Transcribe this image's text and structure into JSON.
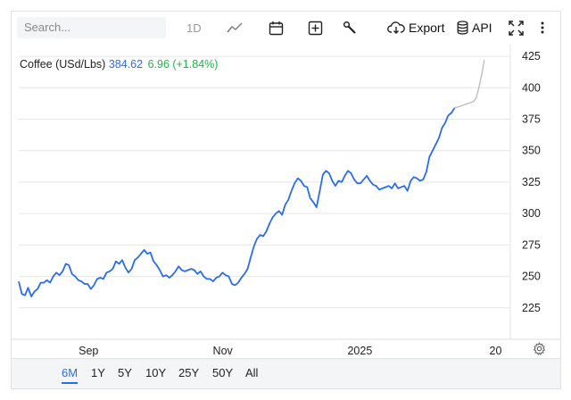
{
  "toolbar": {
    "search_placeholder": "Search...",
    "interval": "1D",
    "chart_type_icon": "line-chart-icon",
    "calendar_icon": "calendar-icon",
    "add_icon": "plus-square-icon",
    "tools_icon": "wrench-icon",
    "export_label": "Export",
    "api_label": "API",
    "expand_icon": "expand-icon",
    "more_icon": "more-vertical-icon"
  },
  "info": {
    "name": "Coffee (USd/Lbs)",
    "price": "384.62",
    "change": "6.96 (+1.84%)"
  },
  "ranges": {
    "items": [
      "6M",
      "1Y",
      "5Y",
      "10Y",
      "25Y",
      "50Y",
      "All"
    ],
    "active": "6M"
  },
  "settings_icon": "gear-icon",
  "chart_data": {
    "type": "line",
    "title": "",
    "xlabel": "",
    "ylabel": "",
    "ylim": [
      200,
      435
    ],
    "yticks": [
      225,
      250,
      275,
      300,
      325,
      350,
      375,
      400,
      425
    ],
    "xtick_labels": [
      "Sep",
      "Nov",
      "2025",
      "20"
    ],
    "xtick_pos": [
      0.142,
      0.415,
      0.694,
      0.97
    ],
    "grid": true,
    "colors": {
      "line": "#2a6cf0",
      "forecast": "#bbbbbb",
      "positive": "#22b04a"
    },
    "series": [
      {
        "values": [
          246,
          236,
          235,
          241,
          234,
          238,
          240,
          245,
          245,
          247,
          245,
          250,
          253,
          251,
          254,
          260,
          259,
          252,
          250,
          247,
          246,
          244,
          244,
          240,
          243,
          248,
          249,
          248,
          253,
          254,
          256,
          262,
          260,
          263,
          257,
          253,
          256,
          263,
          265,
          268,
          271,
          268,
          269,
          262,
          259,
          255,
          250,
          251,
          249,
          251,
          254,
          258,
          255,
          254,
          255,
          256,
          255,
          252,
          254,
          250,
          248,
          248,
          246,
          249,
          250,
          253,
          251,
          250,
          244,
          243,
          245,
          249,
          252,
          256,
          265,
          274,
          280,
          283,
          282,
          286,
          292,
          297,
          300,
          302,
          299,
          307,
          311,
          318,
          324,
          328,
          326,
          322,
          321,
          312,
          309,
          305,
          318,
          331,
          334,
          332,
          326,
          322,
          326,
          325,
          330,
          334,
          332,
          327,
          324,
          324,
          327,
          330,
          326,
          323,
          322,
          319,
          320,
          321,
          322,
          320,
          324,
          320,
          321,
          322,
          318,
          326,
          329,
          328,
          326,
          327,
          333,
          345,
          350,
          355,
          360,
          368,
          372,
          378,
          380,
          384
        ],
        "end_x": 0.8865
      },
      {
        "values": [
          384,
          384.6,
          385.2,
          386,
          386.8,
          387.5,
          388.2,
          389,
          392,
          400,
          410,
          422
        ],
        "start_x": 0.8865,
        "end_x": 0.947
      }
    ]
  }
}
